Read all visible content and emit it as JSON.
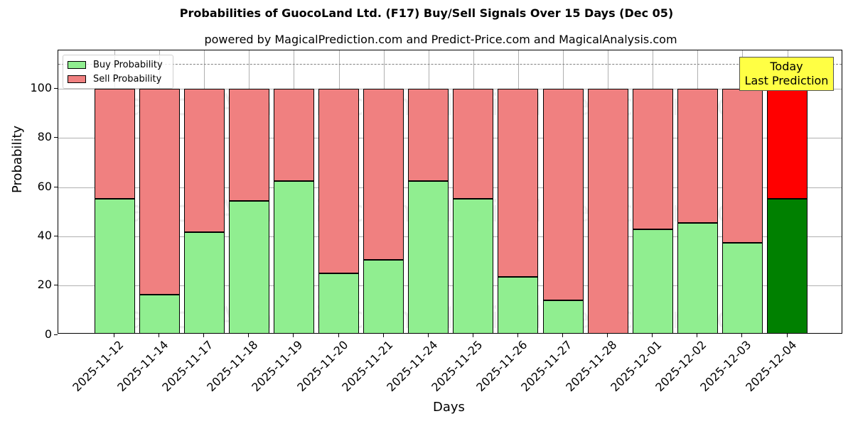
{
  "chart_data": {
    "type": "bar",
    "stacked": true,
    "title": "Probabilities of GuocoLand Ltd. (F17) Buy/Sell Signals Over 15 Days (Dec 05)",
    "subtitle": "powered by MagicalPrediction.com and Predict-Price.com and MagicalAnalysis.com",
    "xlabel": "Days",
    "ylabel": "Probability",
    "ylim": [
      0,
      115
    ],
    "yticks": [
      0,
      20,
      40,
      60,
      80,
      100
    ],
    "grid": true,
    "legend_position": "upper left",
    "reference_line": {
      "y": 110,
      "style": "dashed",
      "color": "#808080"
    },
    "categories": [
      "2025-11-12",
      "2025-11-14",
      "2025-11-17",
      "2025-11-18",
      "2025-11-19",
      "2025-11-20",
      "2025-11-21",
      "2025-11-24",
      "2025-11-25",
      "2025-11-26",
      "2025-11-27",
      "2025-11-28",
      "2025-12-01",
      "2025-12-02",
      "2025-12-03",
      "2025-12-04"
    ],
    "series": [
      {
        "name": "Buy Probability",
        "color": "#90ee90",
        "values": [
          55.3,
          16.4,
          41.6,
          54.5,
          62.5,
          25.0,
          30.5,
          62.5,
          55.3,
          23.6,
          14.1,
          0.0,
          42.9,
          45.5,
          37.4,
          55.3
        ]
      },
      {
        "name": "Sell Probability",
        "color": "#f08080",
        "values": [
          44.7,
          83.6,
          58.4,
          45.5,
          37.5,
          75.0,
          69.5,
          37.5,
          44.7,
          76.4,
          85.9,
          100.0,
          57.1,
          54.5,
          62.6,
          44.7
        ]
      }
    ],
    "highlight": {
      "index": 15,
      "buy_color": "#008000",
      "sell_color": "#ff0000"
    },
    "annotation": {
      "line1": "Today",
      "line2": "Last Prediction",
      "background": "#ffff44"
    }
  },
  "watermarks": [
    "MagicalAnalysis.com",
    "MagicalPrediction.com"
  ]
}
